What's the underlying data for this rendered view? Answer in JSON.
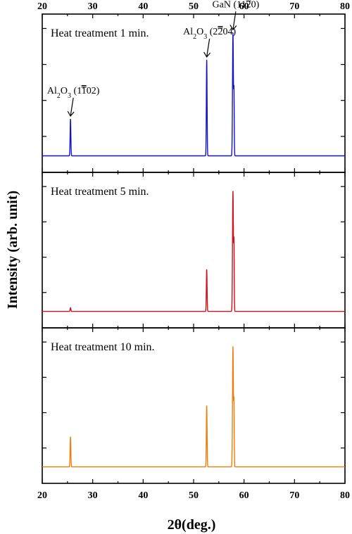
{
  "chart_data": {
    "type": "line",
    "xlabel": "2θ(deg.)",
    "ylabel": "Intensity (arb. unit)",
    "xlim": [
      20,
      80
    ],
    "xticks": [
      20,
      30,
      40,
      50,
      60,
      70,
      80
    ],
    "panels": [
      {
        "title": "Heat treatment 1 min.",
        "color": "#1414c8",
        "baseline": 0.02,
        "peaks": [
          {
            "x": 25.6,
            "height": 0.3,
            "width": 0.1
          },
          {
            "x": 52.6,
            "height": 0.78,
            "width": 0.1
          },
          {
            "x": 57.8,
            "height": 1.0,
            "width": 0.12
          },
          {
            "x": 58.0,
            "height": 0.5,
            "width": 0.08
          }
        ],
        "annotations": [
          {
            "base": "Al",
            "sub1": "2",
            "mid": "O",
            "sub2": "3",
            "pre": " (1",
            "bar": "1",
            "post": "02)",
            "x": 25.6
          },
          {
            "base": "Al",
            "sub1": "2",
            "mid": "O",
            "sub2": "3",
            "pre": " (2",
            "bar": "2",
            "post": "04)",
            "x": 52.6
          },
          {
            "base": "GaN",
            "sub1": "",
            "mid": "",
            "sub2": "",
            "pre": " (11",
            "bar": "2",
            "post": "0)",
            "x": 57.8
          }
        ]
      },
      {
        "title": "Heat treatment 5 min.",
        "color": "#d4101c",
        "baseline": 0.02,
        "peaks": [
          {
            "x": 25.6,
            "height": 0.03,
            "width": 0.1
          },
          {
            "x": 52.6,
            "height": 0.35,
            "width": 0.1
          },
          {
            "x": 57.8,
            "height": 1.0,
            "width": 0.12
          },
          {
            "x": 58.0,
            "height": 0.55,
            "width": 0.08
          }
        ],
        "annotations": []
      },
      {
        "title": "Heat treatment 10 min.",
        "color": "#f07d0a",
        "baseline": 0.02,
        "peaks": [
          {
            "x": 25.6,
            "height": 0.25,
            "width": 0.1
          },
          {
            "x": 52.6,
            "height": 0.51,
            "width": 0.1
          },
          {
            "x": 57.8,
            "height": 1.0,
            "width": 0.12
          },
          {
            "x": 58.0,
            "height": 0.51,
            "width": 0.08
          }
        ],
        "annotations": []
      }
    ]
  }
}
